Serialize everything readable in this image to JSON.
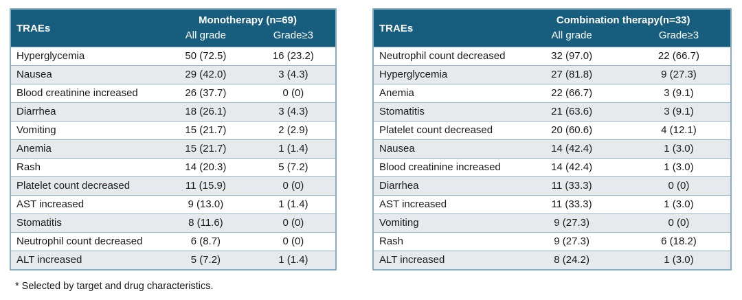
{
  "accent_color": "#175e7e",
  "stripe_color": "#e7eaec",
  "border_color": "#86adc1",
  "footnote": "* Selected by target and drug characteristics.",
  "tables": [
    {
      "id": "monotherapy",
      "corner_header": "TRAEs",
      "group_header": "Monotherapy (n=69)",
      "columns": [
        "All grade",
        "Grade≥3"
      ],
      "rows": [
        {
          "name": "Hyperglycemia",
          "all_grade": "50 (72.5)",
          "grade_ge3": "16 (23.2)"
        },
        {
          "name": "Nausea",
          "all_grade": "29 (42.0)",
          "grade_ge3": "3 (4.3)"
        },
        {
          "name": "Blood creatinine increased",
          "all_grade": "26 (37.7)",
          "grade_ge3": "0 (0)"
        },
        {
          "name": "Diarrhea",
          "all_grade": "18 (26.1)",
          "grade_ge3": "3 (4.3)"
        },
        {
          "name": "Vomiting",
          "all_grade": "15 (21.7)",
          "grade_ge3": "2 (2.9)"
        },
        {
          "name": "Anemia",
          "all_grade": "15 (21.7)",
          "grade_ge3": "1 (1.4)"
        },
        {
          "name": "Rash",
          "all_grade": "14 (20.3)",
          "grade_ge3": "5 (7.2)"
        },
        {
          "name": "Platelet count decreased",
          "all_grade": "11 (15.9)",
          "grade_ge3": "0 (0)"
        },
        {
          "name": "AST increased",
          "all_grade": "9 (13.0)",
          "grade_ge3": "1 (1.4)"
        },
        {
          "name": "Stomatitis",
          "all_grade": "8 (11.6)",
          "grade_ge3": "0 (0)"
        },
        {
          "name": "Neutrophil count decreased",
          "all_grade": "6 (8.7)",
          "grade_ge3": "0 (0)"
        },
        {
          "name": "ALT increased",
          "all_grade": "5 (7.2)",
          "grade_ge3": "1 (1.4)"
        }
      ]
    },
    {
      "id": "combination",
      "corner_header": "TRAEs",
      "group_header": "Combination therapy(n=33)",
      "columns": [
        "All grade",
        "Grade≥3"
      ],
      "rows": [
        {
          "name": "Neutrophil count decreased",
          "all_grade": "32 (97.0)",
          "grade_ge3": "22 (66.7)"
        },
        {
          "name": "Hyperglycemia",
          "all_grade": "27 (81.8)",
          "grade_ge3": "9 (27.3)"
        },
        {
          "name": "Anemia",
          "all_grade": "22 (66.7)",
          "grade_ge3": "3 (9.1)"
        },
        {
          "name": "Stomatitis",
          "all_grade": "21 (63.6)",
          "grade_ge3": "3 (9.1)"
        },
        {
          "name": "Platelet count decreased",
          "all_grade": "20 (60.6)",
          "grade_ge3": "4 (12.1)"
        },
        {
          "name": "Nausea",
          "all_grade": "14 (42.4)",
          "grade_ge3": "1 (3.0)"
        },
        {
          "name": "Blood creatinine increased",
          "all_grade": "14 (42.4)",
          "grade_ge3": "1 (3.0)"
        },
        {
          "name": "Diarrhea",
          "all_grade": "11 (33.3)",
          "grade_ge3": "0 (0)"
        },
        {
          "name": "AST increased",
          "all_grade": "11 (33.3)",
          "grade_ge3": "1 (3.0)"
        },
        {
          "name": "Vomiting",
          "all_grade": "9 (27.3)",
          "grade_ge3": "0 (0)"
        },
        {
          "name": "Rash",
          "all_grade": "9 (27.3)",
          "grade_ge3": "6 (18.2)"
        },
        {
          "name": "ALT increased",
          "all_grade": "8 (24.2)",
          "grade_ge3": "1 (3.0)"
        }
      ]
    }
  ]
}
